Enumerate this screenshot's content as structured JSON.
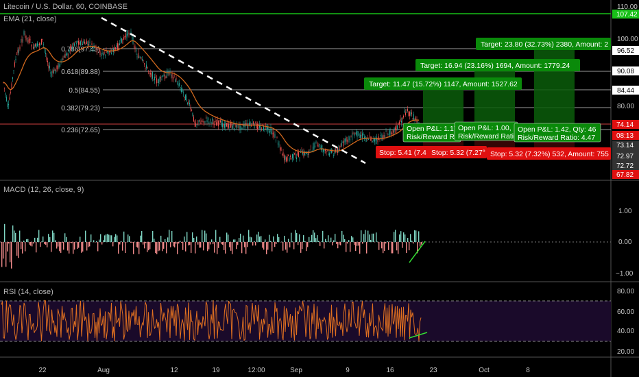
{
  "header": {
    "title": "Litecoin / U.S. Dollar, 60, COINBASE",
    "ema_label": "EMA (21, close)",
    "macd_label": "MACD (12, 26, close, 9)",
    "rsi_label": "RSI (14, close)"
  },
  "colors": {
    "background": "#000000",
    "up": "#26a69a",
    "down": "#ef5350",
    "ema": "#d2691e",
    "target_green": "#0a8a0a",
    "stop_red": "#e01010",
    "rsi_band": "#1a0a2a",
    "rsi_line": "#e07020",
    "divergence": "#33dd33",
    "price_line_green": "#18c018"
  },
  "price_axis": {
    "ticks": [
      "110.00",
      "100.00",
      "96.52",
      "90.08",
      "84.44",
      "80.00",
      "74.14",
      "08:13",
      "73.14",
      "72.97",
      "72.72",
      "67.82"
    ],
    "current_price_badge": "107.42",
    "last_price_badge": "74.14",
    "countdown_badge": "08:13",
    "stop_badge": "67.82"
  },
  "fib_levels": [
    {
      "label": "0.786(97.43)"
    },
    {
      "label": "0.618(89.88)"
    },
    {
      "label": "0.5(84.55)"
    },
    {
      "label": "0.382(79.23)"
    },
    {
      "label": "0.236(72.65)"
    }
  ],
  "positions": [
    {
      "target": "Target: 11.47 (15.72%) 1147, Amount: 1527.62",
      "stop": "Stop: 5.41 (7.4",
      "open": "Open P&L: 1.17",
      "rr": "Risk/Reward Ratio"
    },
    {
      "target": "Target: 16.94 (23.16%) 1694, Amount: 1779.24",
      "stop": "Stop: 5.32 (7.27°",
      "open": "Open P&L: 1.00,",
      "rr": "Risk/Reward Ratio"
    },
    {
      "target": "Target: 23.80 (32.73%) 2380, Amount: 2",
      "stop": "Stop: 5.32 (7.32%) 532, Amount: 755",
      "open": "Open P&L: 1.42, Qty: 46",
      "rr": "Risk/Reward Ratio: 4.47"
    }
  ],
  "macd_axis": {
    "ticks": [
      "1.00",
      "0.00",
      "−1.00"
    ]
  },
  "rsi_axis": {
    "ticks": [
      "80.00",
      "60.00",
      "40.00",
      "20.00"
    ]
  },
  "time_axis": {
    "ticks": [
      "22",
      "Aug",
      "12",
      "19",
      "12:00",
      "Sep",
      "9",
      "16",
      "23",
      "Oct",
      "8"
    ]
  }
}
